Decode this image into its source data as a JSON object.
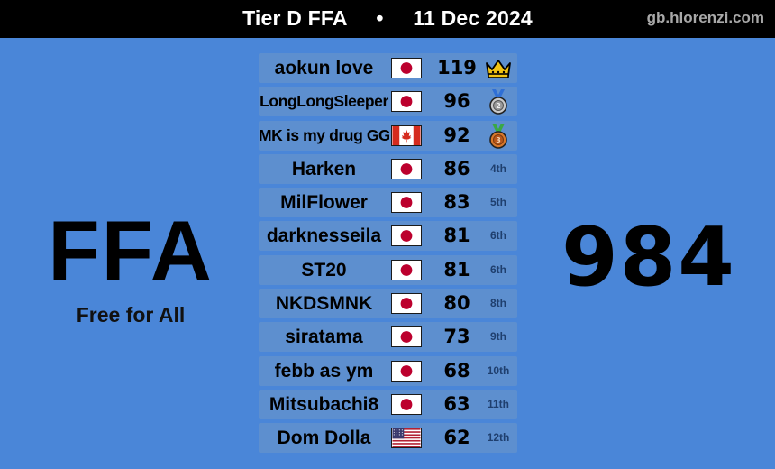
{
  "header": {
    "tier": "Tier D FFA",
    "separator": "•",
    "date": "11 Dec 2024",
    "site": "gb.hlorenzi.com"
  },
  "format": {
    "title": "FFA",
    "subtitle": "Free for All"
  },
  "total_score": "984",
  "colors": {
    "background": "#4a86d8",
    "row": "#5d8fcf",
    "topbar": "#000000"
  },
  "rows": [
    {
      "name": "aokun love",
      "flag": "japan-flag",
      "points": "119",
      "rank": "1st",
      "medal": "crown-icon"
    },
    {
      "name": "LongLongSleeper",
      "flag": "japan-flag",
      "points": "96",
      "rank": "2nd",
      "medal": "silver-medal-icon"
    },
    {
      "name": "MK is my drug GG",
      "flag": "canada-flag",
      "points": "92",
      "rank": "3rd",
      "medal": "bronze-medal-icon"
    },
    {
      "name": "Harken",
      "flag": "japan-flag",
      "points": "86",
      "rank": "4th"
    },
    {
      "name": "MilFlower",
      "flag": "japan-flag",
      "points": "83",
      "rank": "5th"
    },
    {
      "name": "darknesseila",
      "flag": "japan-flag",
      "points": "81",
      "rank": "6th"
    },
    {
      "name": "ST20",
      "flag": "japan-flag",
      "points": "81",
      "rank": "6th"
    },
    {
      "name": "NKDSMNK",
      "flag": "japan-flag",
      "points": "80",
      "rank": "8th"
    },
    {
      "name": "siratama",
      "flag": "japan-flag",
      "points": "73",
      "rank": "9th"
    },
    {
      "name": "febb as ym",
      "flag": "japan-flag",
      "points": "68",
      "rank": "10th"
    },
    {
      "name": "Mitsubachi8",
      "flag": "japan-flag",
      "points": "63",
      "rank": "11th"
    },
    {
      "name": "Dom Dolla",
      "flag": "usa-flag",
      "points": "62",
      "rank": "12th"
    }
  ]
}
